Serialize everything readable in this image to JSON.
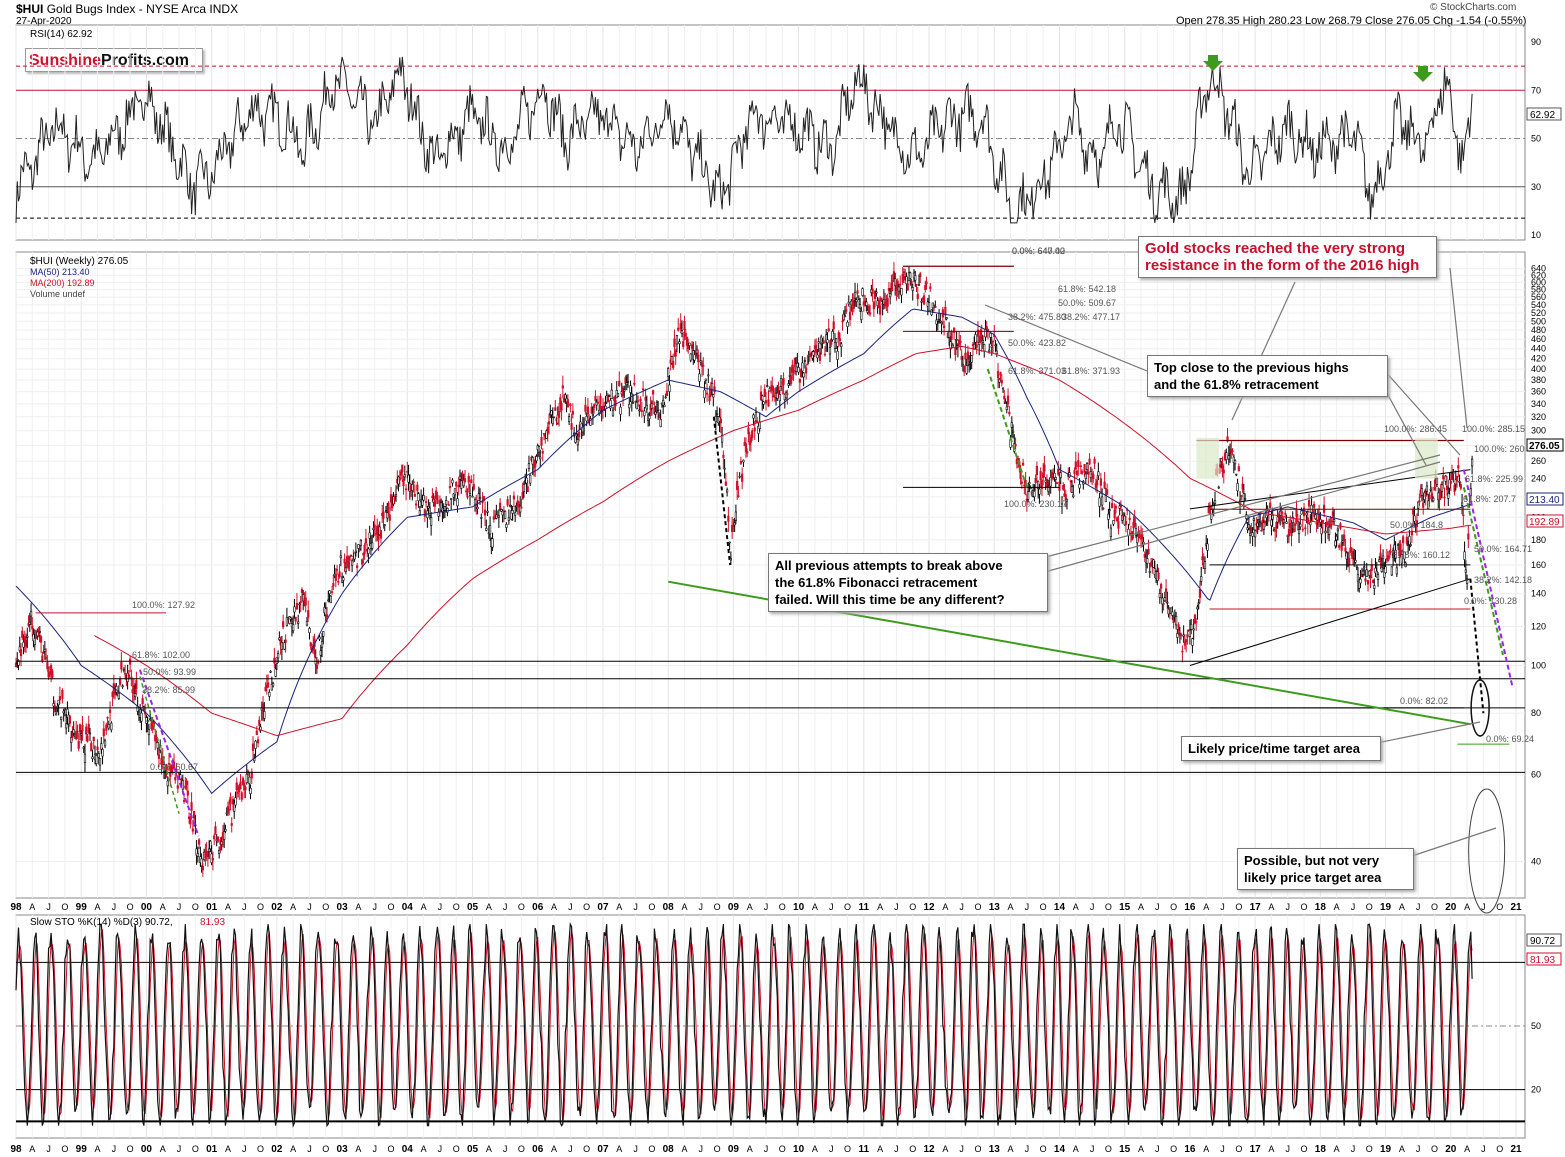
{
  "header": {
    "symbol": "$HUI",
    "name": "Gold Bugs Index - NYSE Arca INDX",
    "date": "27-Apr-2020",
    "ohlc": "Open 278.35  High 280.23  Low 268.79  Close 276.05  Chg -1.54 (-0.55%)",
    "watermark": "© StockCharts.com"
  },
  "logo": {
    "part1": "Sunshine",
    "part2": "Profits.com"
  },
  "colors": {
    "price_up": "#000000",
    "price_down": "#d0102a",
    "ma50": "#1a237e",
    "ma200": "#d0102a",
    "support_green": "#3c9a1c",
    "projection_purple": "#a020f0",
    "annotation_red": "#c8102e",
    "box_fill": "#dbe8c8",
    "arrow_green": "#3c9a1c"
  },
  "rsi_panel": {
    "legend": "RSI(14) 62.92",
    "current": "62.92",
    "levels": [
      "90",
      "70",
      "50",
      "30",
      "10"
    ]
  },
  "price_panel": {
    "legend_symbol": "$HUI (Weekly) 276.05",
    "legend_ma50": "MA(50) 213.40",
    "legend_ma200": "MA(200) 192.89",
    "legend_volume": "Volume undef",
    "tag_close": "276.05",
    "tag_ma50": "213.40",
    "tag_ma200": "192.89",
    "y_ticks": [
      "640",
      "620",
      "600",
      "580",
      "560",
      "540",
      "520",
      "500",
      "480",
      "460",
      "440",
      "420",
      "400",
      "380",
      "360",
      "340",
      "320",
      "300",
      "280",
      "260",
      "240",
      "220",
      "200",
      "180",
      "160",
      "140",
      "120",
      "100",
      "80",
      "60",
      "40"
    ],
    "fib_labels": [
      "0.0%: 640.00",
      "0.0%: 647.42",
      "61.8%: 542.18",
      "50.0%: 509.67",
      "38.2%: 475.80",
      "38.2%: 477.17",
      "50.0%: 423.82",
      "61.8%: 371.03",
      "61.8%: 371.93",
      "100.0%: 230.17",
      "100.0%: 127.92",
      "61.8%: 102.00",
      "50.0%: 93.99",
      "38.2%: 85.99",
      "0.0%: 60.67",
      "100.0%: 286.45",
      "100.0%: 285.15",
      "100.0%: 260",
      "61.8%: 225.99",
      "61.8%: 207.7",
      "50.0%: 184.8",
      "61.8%: 160.12",
      "50.0%: 164.71",
      "38.2%: 142.18",
      "0.0%: 130.28",
      "0.0%: 82.02",
      "0.0%: 69.24"
    ]
  },
  "annotations": {
    "resistance": "Gold stocks reached the very strong\nresistance in the form of the 2016 high",
    "top_close": "Top close to the previous highs\nand the 61.8% retracement",
    "previous_attempts": "All previous attempts to break above\nthe 61.8% Fibonacci retracement\nfailed. Will this time be any different?",
    "likely_target": "Likely price/time target area",
    "possible_target": "Possible, but not very\nlikely price target area"
  },
  "x_axis": {
    "labels": [
      "98",
      "A",
      "J",
      "O",
      "99",
      "A",
      "J",
      "O",
      "00",
      "A",
      "J",
      "O",
      "01",
      "A",
      "J",
      "O",
      "02",
      "A",
      "J",
      "O",
      "03",
      "A",
      "J",
      "O",
      "04",
      "A",
      "J",
      "O",
      "05",
      "A",
      "J",
      "O",
      "06",
      "A",
      "J",
      "O",
      "07",
      "A",
      "J",
      "O",
      "08",
      "A",
      "J",
      "O",
      "09",
      "A",
      "J",
      "O",
      "10",
      "A",
      "J",
      "O",
      "11",
      "A",
      "J",
      "O",
      "12",
      "A",
      "J",
      "O",
      "13",
      "A",
      "J",
      "O",
      "14",
      "A",
      "J",
      "O",
      "15",
      "A",
      "J",
      "O",
      "16",
      "A",
      "J",
      "O",
      "17",
      "A",
      "J",
      "O",
      "18",
      "A",
      "J",
      "O",
      "19",
      "A",
      "J",
      "O",
      "20",
      "A",
      "J",
      "O",
      "21"
    ]
  },
  "sto_panel": {
    "legend_a": "Slow STO %K(14) %D(3) 90.72,",
    "legend_b": "81.93",
    "tag_k": "90.72",
    "tag_d": "81.93",
    "levels": [
      "80",
      "50",
      "20"
    ]
  },
  "chart_data": [
    {
      "type": "line",
      "title": "RSI(14)",
      "ylim": [
        10,
        95
      ],
      "hlines": [
        80,
        70,
        50,
        30,
        17
      ],
      "anchors": {
        "x": [
          1998.0,
          1998.6,
          1999.2,
          2000.0,
          2000.7,
          2001.0,
          2001.6,
          2002.1,
          2002.4,
          2002.9,
          2003.5,
          2003.9,
          2004.4,
          2005.0,
          2005.5,
          2006.1,
          2006.4,
          2007.0,
          2007.5,
          2008.0,
          2008.8,
          2009.3,
          2010.0,
          2010.5,
          2010.9,
          2011.5,
          2011.8,
          2012.3,
          2012.8,
          2013.3,
          2013.8,
          2014.2,
          2014.6,
          2014.9,
          2015.4,
          2015.9,
          2016.3,
          2016.6,
          2016.9,
          2017.5,
          2017.9,
          2018.5,
          2018.8,
          2019.2,
          2019.6,
          2019.9,
          2020.2,
          2020.33
        ],
        "y": [
          28,
          55,
          40,
          68,
          30,
          35,
          62,
          58,
          45,
          75,
          55,
          78,
          40,
          60,
          45,
          72,
          50,
          60,
          45,
          62,
          25,
          60,
          55,
          45,
          75,
          50,
          42,
          58,
          60,
          18,
          35,
          58,
          40,
          60,
          30,
          25,
          78,
          60,
          35,
          55,
          45,
          52,
          25,
          58,
          45,
          75,
          40,
          63
        ]
      }
    },
    {
      "type": "line",
      "title": "$HUI (Weekly)",
      "ylabel": "",
      "scale": "log",
      "ylim": [
        35,
        660
      ],
      "xlim": [
        1998.0,
        2021.0
      ],
      "series": [
        {
          "name": "$HUI (Weekly)",
          "x": [
            1998.0,
            1998.25,
            1998.6,
            1999.0,
            1999.3,
            1999.7,
            1999.95,
            2000.3,
            2000.6,
            2000.85,
            2001.15,
            2001.6,
            2002.1,
            2002.4,
            2002.6,
            2002.9,
            2003.3,
            2003.6,
            2003.95,
            2004.3,
            2004.6,
            2004.9,
            2005.3,
            2005.7,
            2006.0,
            2006.4,
            2006.6,
            2007.0,
            2007.4,
            2007.9,
            2008.2,
            2008.5,
            2008.8,
            2008.95,
            2009.2,
            2009.5,
            2009.9,
            2010.3,
            2010.6,
            2010.9,
            2011.3,
            2011.6,
            2011.75,
            2012.0,
            2012.3,
            2012.6,
            2012.8,
            2013.0,
            2013.25,
            2013.5,
            2013.8,
            2014.1,
            2014.5,
            2014.8,
            2015.0,
            2015.3,
            2015.6,
            2015.9,
            2016.1,
            2016.35,
            2016.6,
            2016.9,
            2017.2,
            2017.6,
            2017.9,
            2018.2,
            2018.6,
            2018.8,
            2019.0,
            2019.3,
            2019.6,
            2019.9,
            2020.0,
            2020.15,
            2020.21,
            2020.25,
            2020.33
          ],
          "y": [
            100,
            125,
            85,
            70,
            68,
            100,
            80,
            62,
            55,
            40,
            45,
            60,
            115,
            135,
            100,
            155,
            170,
            190,
            240,
            210,
            220,
            235,
            190,
            210,
            270,
            350,
            300,
            340,
            360,
            330,
            480,
            400,
            320,
            170,
            280,
            350,
            380,
            440,
            460,
            560,
            540,
            620,
            600,
            560,
            480,
            400,
            480,
            440,
            300,
            225,
            240,
            230,
            250,
            200,
            200,
            175,
            140,
            110,
            120,
            220,
            280,
            190,
            200,
            190,
            205,
            190,
            155,
            150,
            165,
            170,
            225,
            230,
            235,
            245,
            175,
            155,
            276
          ]
        },
        {
          "name": "MA(50)",
          "x": [
            1998.0,
            1999.0,
            2000.0,
            2001.0,
            2002.0,
            2003.0,
            2004.0,
            2005.0,
            2006.0,
            2007.0,
            2008.0,
            2008.8,
            2009.5,
            2010.0,
            2011.0,
            2011.75,
            2012.5,
            2013.0,
            2013.5,
            2014.0,
            2015.0,
            2015.6,
            2016.3,
            2016.9,
            2017.5,
            2018.5,
            2019.0,
            2019.7,
            2020.33
          ],
          "y": [
            145,
            100,
            80,
            55,
            70,
            140,
            200,
            210,
            250,
            330,
            380,
            360,
            320,
            360,
            430,
            530,
            510,
            470,
            350,
            250,
            210,
            175,
            135,
            200,
            210,
            195,
            180,
            200,
            213
          ]
        },
        {
          "name": "MA(200)",
          "x": [
            1999.2,
            2000.0,
            2001.0,
            2002.0,
            2003.0,
            2004.0,
            2005.0,
            2006.0,
            2007.0,
            2008.0,
            2009.0,
            2010.0,
            2011.0,
            2011.8,
            2012.5,
            2013.0,
            2014.0,
            2015.0,
            2016.0,
            2017.0,
            2018.0,
            2019.0,
            2020.0,
            2020.33
          ],
          "y": [
            115,
            100,
            80,
            72,
            78,
            110,
            150,
            180,
            215,
            260,
            300,
            330,
            380,
            430,
            445,
            430,
            380,
            310,
            240,
            205,
            195,
            185,
            190,
            193
          ]
        }
      ],
      "horizontal_levels": [
        286.45,
        260,
        225.99,
        207.7,
        184.8,
        160.12,
        130.28,
        102,
        93.99,
        82.02,
        69.24,
        60.67
      ]
    },
    {
      "type": "line",
      "title": "Slow STO %K(14) %D(3)",
      "ylim": [
        0,
        100
      ],
      "hlines": [
        80,
        50,
        20,
        5
      ],
      "last": {
        "k": 90.72,
        "d": 81.93
      }
    }
  ]
}
